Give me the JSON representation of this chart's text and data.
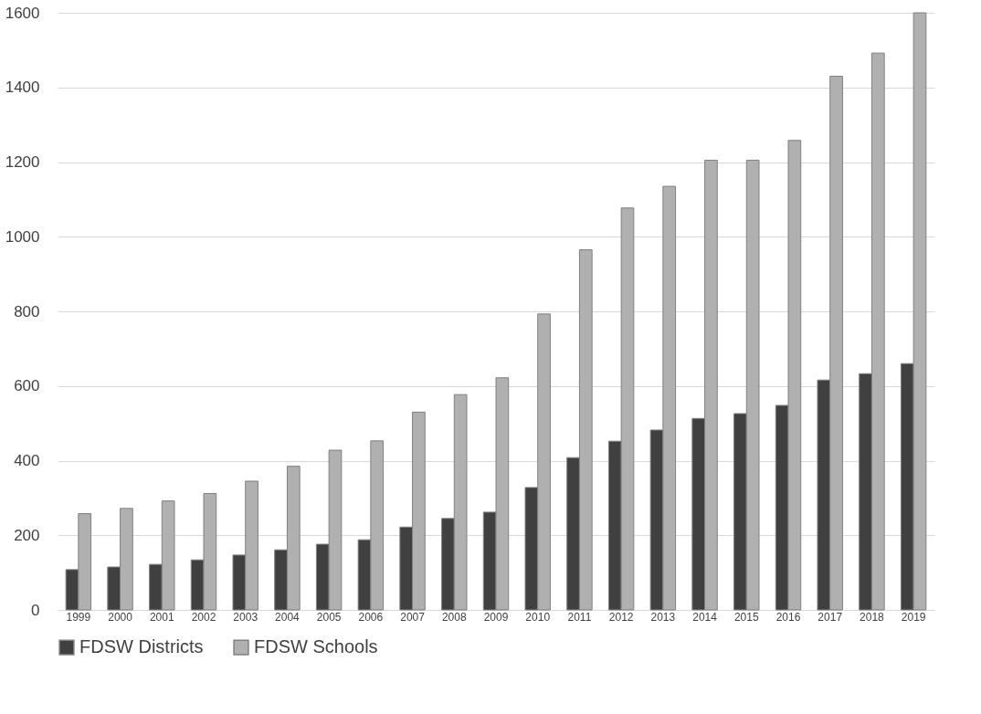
{
  "chart_data": {
    "type": "bar",
    "categories": [
      "1999",
      "2000",
      "2001",
      "2002",
      "2003",
      "2004",
      "2005",
      "2006",
      "2007",
      "2008",
      "2009",
      "2010",
      "2011",
      "2012",
      "2013",
      "2014",
      "2015",
      "2016",
      "2017",
      "2018",
      "2019"
    ],
    "series": [
      {
        "name": "FDSW Districts",
        "color": "#404040",
        "values": [
          108,
          115,
          122,
          134,
          147,
          161,
          176,
          188,
          222,
          245,
          262,
          328,
          408,
          452,
          482,
          513,
          526,
          548,
          616,
          633,
          660
        ]
      },
      {
        "name": "FDSW Schools",
        "color": "#b0b0b0",
        "values": [
          258,
          272,
          292,
          312,
          345,
          385,
          428,
          453,
          530,
          577,
          622,
          793,
          965,
          1077,
          1135,
          1205,
          1205,
          1258,
          1430,
          1492,
          1600
        ]
      }
    ],
    "ylim": [
      0,
      1600
    ],
    "yticks": [
      0,
      200,
      400,
      600,
      800,
      1000,
      1200,
      1400,
      1600
    ],
    "grid": "y",
    "legend": "bottom"
  }
}
